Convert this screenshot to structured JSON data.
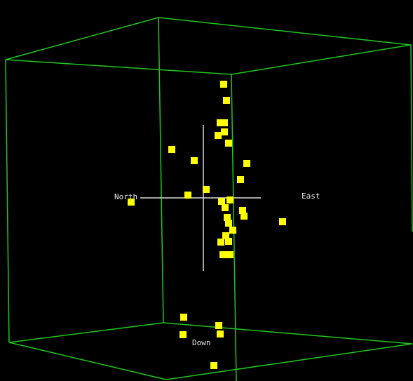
{
  "scene": {
    "background_color": "#000000",
    "box_color": "#1ec81e",
    "marker_color": "#ffff00",
    "crosshair_color": "#d9d9d9",
    "label_color": "#e6e6e6"
  },
  "axes": {
    "north": "North",
    "east": "East",
    "down": "Down"
  }
}
